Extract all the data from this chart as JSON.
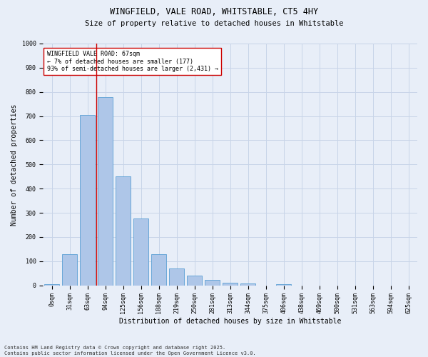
{
  "title_line1": "WINGFIELD, VALE ROAD, WHITSTABLE, CT5 4HY",
  "title_line2": "Size of property relative to detached houses in Whitstable",
  "xlabel": "Distribution of detached houses by size in Whitstable",
  "ylabel": "Number of detached properties",
  "categories": [
    "0sqm",
    "31sqm",
    "63sqm",
    "94sqm",
    "125sqm",
    "156sqm",
    "188sqm",
    "219sqm",
    "250sqm",
    "281sqm",
    "313sqm",
    "344sqm",
    "375sqm",
    "406sqm",
    "438sqm",
    "469sqm",
    "500sqm",
    "531sqm",
    "563sqm",
    "594sqm",
    "625sqm"
  ],
  "values": [
    5,
    128,
    704,
    780,
    451,
    278,
    130,
    70,
    40,
    22,
    10,
    8,
    0,
    5,
    0,
    0,
    0,
    0,
    0,
    0,
    0
  ],
  "bar_color": "#aec6e8",
  "bar_edge_color": "#5a9fd4",
  "vline_color": "#cc0000",
  "vline_index": 2.5,
  "annotation_text": "WINGFIELD VALE ROAD: 67sqm\n← 7% of detached houses are smaller (177)\n93% of semi-detached houses are larger (2,431) →",
  "annotation_box_color": "#ffffff",
  "annotation_box_edge": "#cc0000",
  "ylim": [
    0,
    1000
  ],
  "yticks": [
    0,
    100,
    200,
    300,
    400,
    500,
    600,
    700,
    800,
    900,
    1000
  ],
  "grid_color": "#c8d4e8",
  "plot_bg_color": "#e8eef8",
  "fig_bg_color": "#e8eef8",
  "title_fontsize": 8.5,
  "subtitle_fontsize": 7.5,
  "tick_fontsize": 6,
  "label_fontsize": 7,
  "annotation_fontsize": 6,
  "footnote": "Contains HM Land Registry data © Crown copyright and database right 2025.\nContains public sector information licensed under the Open Government Licence v3.0."
}
